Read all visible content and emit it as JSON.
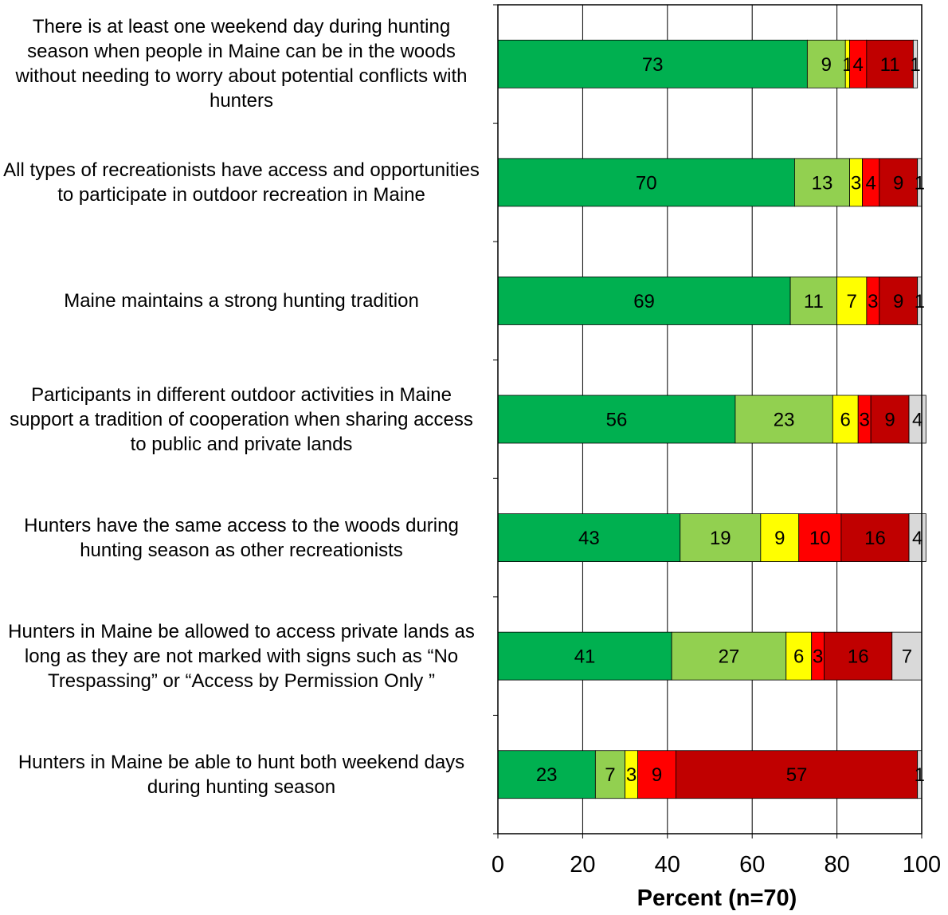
{
  "chart_data": {
    "type": "bar",
    "stacked": true,
    "orientation": "horizontal",
    "xlabel": "Percent (n=70)",
    "xlim": [
      0,
      100
    ],
    "xticks": [
      "0",
      "20",
      "40",
      "60",
      "80",
      "100"
    ],
    "grid": true,
    "categories": [
      "There is at least one weekend day during hunting season when people in Maine can be in the woods without needing to worry about potential conflicts with hunters",
      "All types of recreationists have access and opportunities to participate in outdoor recreation in Maine",
      "Maine maintains a strong hunting tradition",
      "Participants in different outdoor activities in Maine support a tradition of cooperation when sharing access to public and private lands",
      "Hunters have the same access to the woods during hunting season as other recreationists",
      "Hunters in Maine be allowed to access private lands as long as they are not marked with signs such as “No Trespassing” or “Access by Permission Only ”",
      "Hunters in Maine be able to hunt both weekend days during hunting season"
    ],
    "series": [
      {
        "color": "#00b050",
        "values": [
          73,
          70,
          69,
          56,
          43,
          41,
          23
        ],
        "labels": [
          "73",
          "70",
          "69",
          "56",
          "43",
          "41",
          "23"
        ]
      },
      {
        "color": "#92d050",
        "values": [
          9,
          13,
          11,
          23,
          19,
          27,
          7
        ],
        "labels": [
          "9",
          "13",
          "11",
          "23",
          "19",
          "27",
          "7"
        ]
      },
      {
        "color": "#ffff00",
        "values": [
          1,
          3,
          7,
          6,
          9,
          6,
          3
        ],
        "labels": [
          "1",
          "3",
          "7",
          "6",
          "9",
          "6",
          "3"
        ]
      },
      {
        "color": "#ff0000",
        "values": [
          4,
          4,
          3,
          3,
          10,
          3,
          9
        ],
        "labels": [
          "4",
          "4",
          "3",
          "3",
          "10",
          "3",
          "9"
        ]
      },
      {
        "color": "#c00000",
        "values": [
          11,
          9,
          9,
          9,
          16,
          16,
          57
        ],
        "labels": [
          "11",
          "9",
          "9",
          "9",
          "16",
          "16",
          "57"
        ]
      },
      {
        "color": "#d9d9d9",
        "values": [
          1,
          1,
          1,
          4,
          4,
          7,
          1
        ],
        "labels": [
          "1",
          "1",
          "1",
          "4",
          "4",
          "7",
          "1"
        ]
      }
    ]
  }
}
